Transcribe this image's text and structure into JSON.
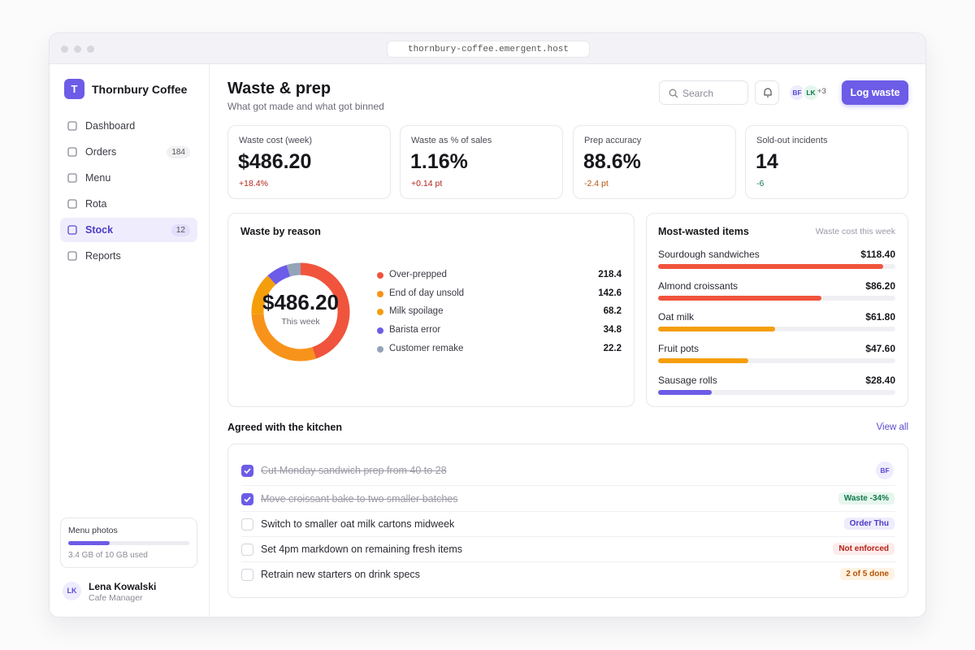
{
  "browser": {
    "url": "thornbury-coffee.emergent.host"
  },
  "sidebar": {
    "brand": {
      "initial": "T",
      "name": "Thornbury Coffee"
    },
    "nav": [
      {
        "label": "Dashboard"
      },
      {
        "label": "Orders",
        "badge": 184
      },
      {
        "label": "Menu"
      },
      {
        "label": "Rota"
      },
      {
        "label": "Stock",
        "badge": 12,
        "active": true
      },
      {
        "label": "Reports"
      }
    ],
    "storage": {
      "title": "Menu photos",
      "used": 3.4,
      "total": 10,
      "label": "3.4 GB of 10 GB used"
    },
    "user": {
      "initials": "LK",
      "name": "Lena Kowalski",
      "role": "Cafe Manager"
    }
  },
  "header": {
    "title": "Waste & prep",
    "subtitle": "What got made and what got binned",
    "search": "Search",
    "avatars": [
      "BF",
      "LK"
    ],
    "more": "+3",
    "button": "Log waste"
  },
  "kpis": [
    {
      "label": "Waste cost (week)",
      "value": "$486.20",
      "delta": "+18.4%",
      "tone": "bad"
    },
    {
      "label": "Waste as % of sales",
      "value": "1.16%",
      "delta": "+0.14 pt",
      "tone": "bad"
    },
    {
      "label": "Prep accuracy",
      "value": "88.6%",
      "delta": "-2.4 pt",
      "tone": "warn"
    },
    {
      "label": "Sold-out incidents",
      "value": "14",
      "delta": "-6",
      "tone": "good"
    }
  ],
  "waste_by_reason": {
    "type": "donut",
    "title": "Waste by reason",
    "center_value": "$486.20",
    "center_label": "This week",
    "categories": [
      "Over-prepped",
      "End of day unsold",
      "Milk spoilage",
      "Barista error",
      "Customer remake"
    ],
    "values": [
      218.4,
      142.6,
      68.2,
      34.8,
      22.2
    ],
    "colors": [
      "#f0543c",
      "#f7931a",
      "#f59e0b",
      "#6c5ce7",
      "#94a3b8"
    ]
  },
  "most_wasted": {
    "type": "bar",
    "title": "Most-wasted items",
    "subtitle": "Waste cost this week",
    "categories": [
      "Sourdough sandwiches",
      "Almond croissants",
      "Oat milk",
      "Fruit pots",
      "Sausage rolls"
    ],
    "values": [
      118.4,
      86.2,
      61.8,
      47.6,
      28.4
    ],
    "value_labels": [
      "$118.40",
      "$86.20",
      "$61.80",
      "$47.60",
      "$28.40"
    ],
    "colors": [
      "#f0543c",
      "#f0543c",
      "#f59e0b",
      "#f59e0b",
      "#6c5ce7"
    ],
    "xlim": [
      0,
      125
    ]
  },
  "tasks": {
    "title": "Agreed with the kitchen",
    "link": "View all",
    "items": [
      {
        "text": "Cut Monday sandwich prep from 40 to 28",
        "done": true,
        "tag": "BF",
        "tag_style": "avatar"
      },
      {
        "text": "Move croissant bake to two smaller batches",
        "done": true,
        "tag": "Waste -34%",
        "tag_style": "green"
      },
      {
        "text": "Switch to smaller oat milk cartons midweek",
        "done": false,
        "tag": "Order Thu",
        "tag_style": "purple"
      },
      {
        "text": "Set 4pm markdown on remaining fresh items",
        "done": false,
        "tag": "Not enforced",
        "tag_style": "red"
      },
      {
        "text": "Retrain new starters on drink specs",
        "done": false,
        "tag": "2 of 5 done",
        "tag_style": "orange"
      }
    ]
  }
}
